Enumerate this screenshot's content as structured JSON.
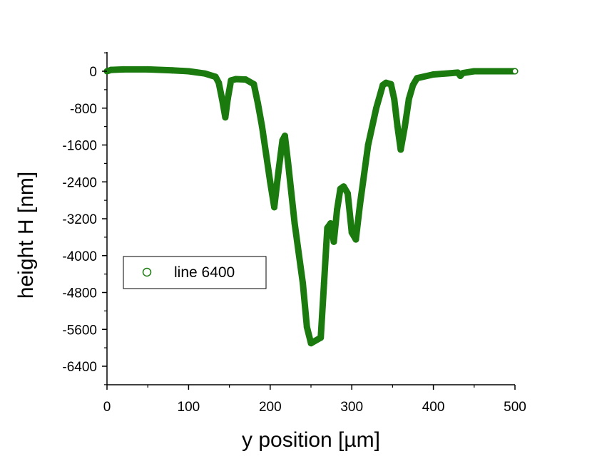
{
  "chart_data": {
    "type": "scatter",
    "xlabel": "y position [µm]",
    "ylabel": "height H [nm]",
    "xlim": [
      0,
      500
    ],
    "ylim": [
      -6400,
      0
    ],
    "x_ticks": [
      0,
      100,
      200,
      300,
      400,
      500
    ],
    "y_ticks": [
      0,
      -800,
      -1600,
      -2400,
      -3200,
      -4000,
      -4800,
      -5600,
      -6400
    ],
    "grid": false,
    "legend_position": "middle-left",
    "series": [
      {
        "name": "line 6400",
        "color": "#1a7a0e",
        "marker": "circle",
        "x": [
          0,
          5,
          20,
          50,
          80,
          100,
          120,
          133,
          137,
          141,
          145,
          148,
          152,
          158,
          170,
          180,
          185,
          190,
          195,
          200,
          205,
          210,
          215,
          218,
          222,
          230,
          240,
          245,
          250,
          262,
          266,
          270,
          274,
          278,
          282,
          286,
          290,
          295,
          300,
          305,
          310,
          320,
          330,
          338,
          342,
          348,
          352,
          356,
          360,
          365,
          370,
          375,
          380,
          400,
          430,
          433,
          436,
          450,
          470,
          500
        ],
        "y": [
          0,
          30,
          40,
          40,
          20,
          0,
          -50,
          -120,
          -250,
          -600,
          -1000,
          -600,
          -200,
          -170,
          -180,
          -280,
          -700,
          -1200,
          -1800,
          -2400,
          -2950,
          -2200,
          -1500,
          -1400,
          -2000,
          -3300,
          -4600,
          -5550,
          -5900,
          -5780,
          -4600,
          -3400,
          -3300,
          -3700,
          -3000,
          -2550,
          -2500,
          -2650,
          -3500,
          -3650,
          -2900,
          -1600,
          -800,
          -300,
          -250,
          -280,
          -600,
          -1200,
          -1700,
          -1200,
          -600,
          -300,
          -150,
          -70,
          -30,
          -100,
          -40,
          0,
          0,
          0
        ]
      }
    ]
  }
}
